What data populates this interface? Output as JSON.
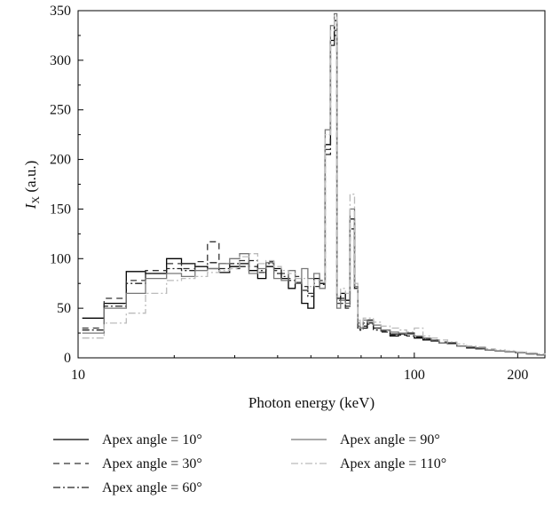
{
  "chart_data": {
    "type": "line",
    "title": "",
    "xlabel": "Photon energy (keV)",
    "ylabel_italic": "I",
    "ylabel_sub": "X",
    "ylabel_rest": " (a.u.)",
    "xscale": "log",
    "xlim": [
      10.5,
      240
    ],
    "ylim": [
      0,
      350
    ],
    "xticks": [
      {
        "value": 10,
        "label": "10"
      },
      {
        "value": 100,
        "label": "100"
      },
      {
        "value": 200,
        "label": "200"
      }
    ],
    "yticks": [
      0,
      50,
      100,
      150,
      200,
      250,
      300,
      350
    ],
    "legend_position": "bottom",
    "series": [
      {
        "name": "Apex angle = 10°",
        "color": "#000000",
        "dash": "",
        "x": [
          10.8,
          12.5,
          14.5,
          16.5,
          19,
          21,
          23,
          25,
          27,
          29,
          31,
          33,
          35,
          37,
          39,
          41,
          43,
          45,
          47,
          49,
          51,
          53,
          55,
          57,
          58.5,
          59.5,
          61,
          63,
          65,
          67,
          68.5,
          69.5,
          71,
          73,
          76,
          80,
          85,
          90,
          95,
          100,
          106,
          112,
          118,
          125,
          133,
          142,
          151,
          161,
          172,
          184,
          197,
          212,
          228,
          240
        ],
        "y": [
          40,
          55,
          87,
          85,
          100,
          95,
          92,
          90,
          86,
          92,
          95,
          88,
          80,
          92,
          90,
          80,
          70,
          75,
          55,
          50,
          80,
          75,
          215,
          320,
          340,
          60,
          65,
          58,
          140,
          70,
          35,
          30,
          30,
          38,
          30,
          28,
          22,
          25,
          25,
          20,
          18,
          17,
          15,
          15,
          12,
          10,
          10,
          8,
          7,
          6,
          5,
          4,
          3,
          2
        ]
      },
      {
        "name": "Apex angle = 30°",
        "color": "#333333",
        "dash": "7,5",
        "x": [
          10.8,
          12.5,
          14.5,
          16.5,
          19,
          21,
          23,
          25,
          27,
          29,
          31,
          33,
          35,
          37,
          39,
          41,
          43,
          45,
          47,
          49,
          51,
          53,
          55,
          57,
          58.5,
          59.5,
          61,
          63,
          65,
          67,
          68.5,
          69.5,
          71,
          73,
          76,
          80,
          85,
          90,
          95,
          100,
          106,
          112,
          118,
          125,
          133,
          142,
          151,
          161,
          172,
          184,
          197,
          212,
          228,
          240
        ],
        "y": [
          30,
          60,
          78,
          88,
          95,
          90,
          97,
          117,
          95,
          90,
          98,
          92,
          86,
          97,
          88,
          85,
          80,
          82,
          72,
          65,
          75,
          78,
          210,
          318,
          330,
          55,
          55,
          50,
          135,
          70,
          32,
          28,
          35,
          35,
          30,
          26,
          23,
          24,
          24,
          21,
          19,
          18,
          16,
          14,
          12,
          11,
          9,
          8,
          7,
          6,
          5,
          4,
          3,
          2
        ]
      },
      {
        "name": "Apex angle = 60°",
        "color": "#222222",
        "dash": "8,3,2,3",
        "x": [
          10.8,
          12.5,
          14.5,
          16.5,
          19,
          21,
          23,
          25,
          27,
          29,
          31,
          33,
          35,
          37,
          39,
          41,
          43,
          45,
          47,
          49,
          51,
          53,
          55,
          57,
          58.5,
          59.5,
          61,
          63,
          65,
          67,
          68.5,
          69.5,
          71,
          73,
          76,
          80,
          85,
          90,
          95,
          100,
          106,
          112,
          118,
          125,
          133,
          142,
          151,
          161,
          172,
          184,
          197,
          212,
          228,
          240
        ],
        "y": [
          28,
          52,
          75,
          85,
          90,
          88,
          92,
          96,
          90,
          95,
          92,
          98,
          88,
          95,
          85,
          82,
          78,
          76,
          68,
          62,
          72,
          74,
          205,
          315,
          325,
          58,
          60,
          52,
          130,
          72,
          30,
          28,
          32,
          34,
          28,
          27,
          24,
          23,
          22,
          21,
          19,
          17,
          15,
          14,
          12,
          11,
          9,
          8,
          7,
          6,
          5,
          4,
          3,
          2
        ]
      },
      {
        "name": "Apex angle = 90°",
        "color": "#777777",
        "dash": "",
        "x": [
          10.8,
          12.5,
          14.5,
          16.5,
          19,
          21,
          23,
          25,
          27,
          29,
          31,
          33,
          35,
          37,
          39,
          41,
          43,
          45,
          47,
          49,
          51,
          53,
          55,
          57,
          58.5,
          59.5,
          61,
          63,
          65,
          67,
          68.5,
          69.5,
          71,
          73,
          76,
          80,
          85,
          90,
          95,
          100,
          106,
          112,
          118,
          125,
          133,
          142,
          151,
          161,
          172,
          184,
          197,
          212,
          228,
          240
        ],
        "y": [
          25,
          50,
          65,
          80,
          85,
          82,
          88,
          90,
          95,
          100,
          105,
          85,
          90,
          96,
          80,
          78,
          88,
          75,
          90,
          80,
          85,
          70,
          230,
          335,
          347,
          50,
          58,
          55,
          150,
          72,
          35,
          30,
          38,
          36,
          33,
          28,
          26,
          25,
          24,
          22,
          20,
          18,
          15,
          14,
          12,
          11,
          10,
          8,
          7,
          6,
          5,
          4,
          3,
          2
        ]
      },
      {
        "name": "Apex angle = 110°",
        "color": "#bbbbbb",
        "dash": "8,3,2,3",
        "x": [
          10.8,
          12.5,
          14.5,
          16.5,
          19,
          21,
          23,
          25,
          27,
          29,
          31,
          33,
          35,
          37,
          39,
          41,
          43,
          45,
          47,
          49,
          51,
          53,
          55,
          57,
          58.5,
          59.5,
          61,
          63,
          65,
          67,
          68.5,
          69.5,
          71,
          73,
          76,
          80,
          85,
          90,
          95,
          100,
          106,
          112,
          118,
          125,
          133,
          142,
          151,
          161,
          172,
          184,
          197,
          212,
          228,
          240
        ],
        "y": [
          20,
          35,
          45,
          65,
          78,
          80,
          82,
          86,
          88,
          90,
          102,
          105,
          95,
          98,
          92,
          88,
          85,
          80,
          80,
          72,
          78,
          76,
          225,
          330,
          345,
          62,
          70,
          65,
          165,
          75,
          38,
          32,
          40,
          40,
          36,
          32,
          30,
          28,
          26,
          30,
          22,
          20,
          18,
          16,
          14,
          12,
          11,
          9,
          8,
          7,
          6,
          5,
          4,
          3
        ]
      }
    ]
  }
}
